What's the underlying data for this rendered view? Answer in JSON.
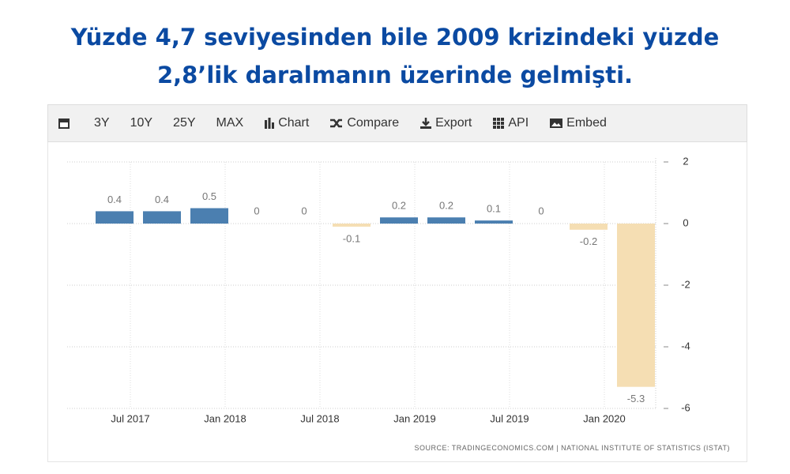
{
  "title_lines": [
    "Yüzde 4,7 seviyesinden bile 2009 krizindeki yüzde",
    "2,8’lik daralmanın üzerinde gelmişti."
  ],
  "toolbar": [
    "3Y",
    "10Y",
    "25Y",
    "MAX",
    "Chart",
    "Compare",
    "Export",
    "API",
    "Embed"
  ],
  "chart_data": {
    "type": "bar",
    "categories": [
      "Jul 2017",
      null,
      "Jan 2018",
      null,
      "Jul 2018",
      null,
      "Jan 2019",
      null,
      "Jul 2019",
      null,
      "Jan 2020",
      null
    ],
    "values": [
      0.4,
      0.4,
      0.5,
      0,
      0,
      -0.1,
      0.2,
      0.2,
      0.1,
      0,
      -0.2,
      -5.3
    ],
    "color": "#4b7fb0",
    "negative_color": "#f5deb3",
    "ylim": [
      -6,
      2
    ],
    "yticks": [
      2,
      0,
      -2,
      -4,
      -6
    ],
    "grid": true,
    "source": "SOURCE: TRADINGECONOMICS.COM | NATIONAL INSTITUTE OF STATISTICS (ISTAT)"
  }
}
